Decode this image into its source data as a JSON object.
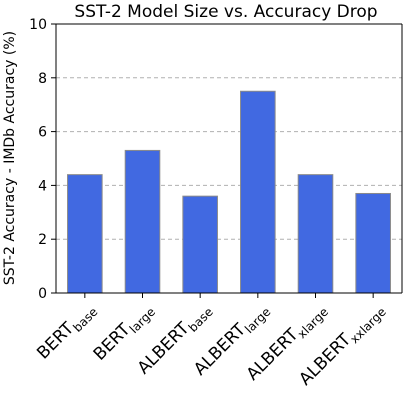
{
  "chart_data": {
    "type": "bar",
    "title": "SST-2 Model Size vs. Accuracy Drop",
    "xlabel": "",
    "ylabel": "SST-2 Accuracy - IMDb Accuracy (%)",
    "ylim": [
      0,
      10
    ],
    "yticks": [
      "0",
      "2",
      "4",
      "6",
      "8",
      "10"
    ],
    "grid": "horizontal dashed",
    "categories": [
      {
        "main": "BERT",
        "sub": "base"
      },
      {
        "main": "BERT",
        "sub": "large"
      },
      {
        "main": "ALBERT",
        "sub": "base"
      },
      {
        "main": "ALBERT",
        "sub": "large"
      },
      {
        "main": "ALBERT",
        "sub": "xlarge"
      },
      {
        "main": "ALBERT",
        "sub": "xxlarge"
      }
    ],
    "values": [
      4.4,
      5.3,
      3.6,
      7.5,
      4.4,
      3.7
    ],
    "colors": {
      "bar": "#4169e1",
      "bar_edge": "#8a8a8a",
      "grid": "#b0b0b0",
      "axis": "#000000"
    }
  }
}
